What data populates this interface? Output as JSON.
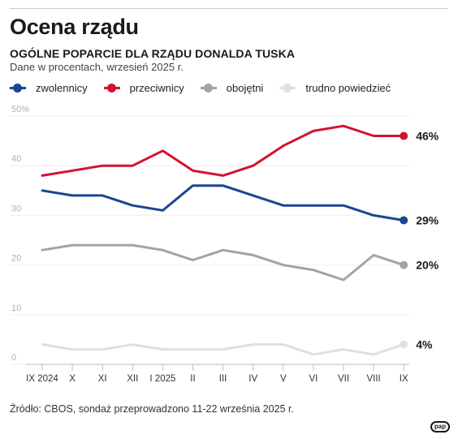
{
  "header": {
    "title": "Ocena rządu",
    "subtitle": "OGÓLNE POPARCIE DLA RZĄDU DONALDA TUSKA",
    "note": "Dane w procentach, wrzesień 2025 r."
  },
  "legend": [
    {
      "label": "zwolennicy",
      "color": "#1a4590"
    },
    {
      "label": "przeciwnicy",
      "color": "#d3142c"
    },
    {
      "label": "obojętni",
      "color": "#a3a3a3"
    },
    {
      "label": "trudno powiedzieć",
      "color": "#e0e0e0"
    }
  ],
  "footer": {
    "source": "Źródło: CBOS, sondaż przeprowadzono 11-22 września 2025 r.",
    "logo": "pap"
  },
  "chart_data": {
    "type": "line",
    "title": "Ocena rządu",
    "subtitle": "OGÓLNE POPARCIE DLA RZĄDU DONALDA TUSKA",
    "categories": [
      "IX 2024",
      "X",
      "XI",
      "XII",
      "I 2025",
      "II",
      "III",
      "IV",
      "V",
      "VI",
      "VII",
      "VIII",
      "IX"
    ],
    "ylim": [
      0,
      50
    ],
    "yticks": [
      0,
      10,
      20,
      30,
      40,
      50
    ],
    "ytick_labels": [
      "0",
      "10",
      "20",
      "30",
      "40",
      "50%"
    ],
    "grid": true,
    "legend_position": "top-left",
    "series": [
      {
        "name": "zwolennicy",
        "color": "#1a4590",
        "values": [
          35,
          34,
          34,
          32,
          31,
          36,
          36,
          34,
          32,
          32,
          32,
          30,
          29
        ],
        "end_label": "29%"
      },
      {
        "name": "przeciwnicy",
        "color": "#d3142c",
        "values": [
          38,
          39,
          40,
          40,
          43,
          39,
          38,
          40,
          44,
          47,
          48,
          46,
          46
        ],
        "end_label": "46%"
      },
      {
        "name": "obojętni",
        "color": "#a3a3a3",
        "values": [
          23,
          24,
          24,
          24,
          23,
          21,
          23,
          22,
          20,
          19,
          17,
          22,
          20
        ],
        "end_label": "20%"
      },
      {
        "name": "trudno powiedzieć",
        "color": "#e0e0e0",
        "values": [
          4,
          3,
          3,
          4,
          3,
          3,
          3,
          4,
          4,
          2,
          3,
          2,
          4
        ],
        "end_label": "4%"
      }
    ]
  }
}
